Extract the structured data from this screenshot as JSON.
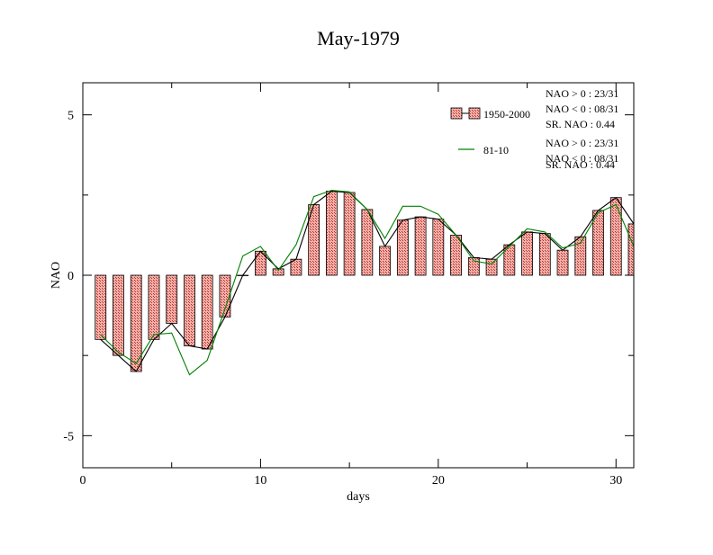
{
  "chart_data": {
    "type": "bar",
    "title": "May-1979",
    "xlabel": "days",
    "ylabel": "NAO",
    "xlim": [
      0,
      31
    ],
    "ylim": [
      -6,
      6
    ],
    "xticks": [
      0,
      10,
      20,
      30
    ],
    "xtick_labels": [
      "0",
      "10",
      "20",
      "30"
    ],
    "yticks": [
      -5,
      0,
      5
    ],
    "ytick_labels": [
      "-5",
      "0",
      "5"
    ],
    "grid": false,
    "legend_position": "top-right",
    "x": [
      1,
      2,
      3,
      4,
      5,
      6,
      7,
      8,
      9,
      10,
      11,
      12,
      13,
      14,
      15,
      16,
      17,
      18,
      19,
      20,
      21,
      22,
      23,
      24,
      25,
      26,
      27,
      28,
      29,
      30,
      31
    ],
    "series": [
      {
        "name": "1950-2000",
        "kind": "bar",
        "color": "#e07070",
        "values": [
          -2.0,
          -2.5,
          -3.0,
          -2.0,
          -1.5,
          -2.2,
          -2.3,
          -1.3,
          0.0,
          0.75,
          0.2,
          0.5,
          2.2,
          2.62,
          2.58,
          2.05,
          0.9,
          1.72,
          1.82,
          1.75,
          1.25,
          0.55,
          0.5,
          0.95,
          1.35,
          1.3,
          0.78,
          1.2,
          2.02,
          2.42,
          1.6
        ]
      },
      {
        "name": "",
        "kind": "line",
        "color": "#000000",
        "values": [
          -2.0,
          -2.5,
          -3.0,
          -2.0,
          -1.5,
          -2.2,
          -2.3,
          -1.3,
          0.0,
          0.75,
          0.2,
          0.5,
          2.2,
          2.62,
          2.58,
          2.05,
          0.9,
          1.72,
          1.82,
          1.75,
          1.25,
          0.55,
          0.5,
          0.95,
          1.35,
          1.3,
          0.78,
          1.2,
          2.02,
          2.42,
          1.6
        ]
      },
      {
        "name": "81-10",
        "kind": "line",
        "color": "#008000",
        "values": [
          -1.85,
          -2.4,
          -2.75,
          -1.85,
          -1.8,
          -3.1,
          -2.65,
          -1.05,
          0.6,
          0.9,
          0.15,
          0.95,
          2.45,
          2.65,
          2.6,
          2.05,
          1.15,
          2.15,
          2.15,
          1.9,
          1.25,
          0.45,
          0.35,
          0.9,
          1.45,
          1.35,
          0.85,
          1.0,
          1.95,
          2.2,
          0.9
        ]
      }
    ],
    "legend": [
      {
        "label": "1950-2000",
        "stats": [
          "NAO > 0 : 23/31",
          "NAO < 0 : 08/31",
          "SR. NAO :  0.44"
        ]
      },
      {
        "label": "81-10",
        "stats": [
          "NAO > 0 : 23/31",
          "NAO < 0 : 08/31",
          "SR. NAO :  0.44"
        ]
      }
    ]
  }
}
